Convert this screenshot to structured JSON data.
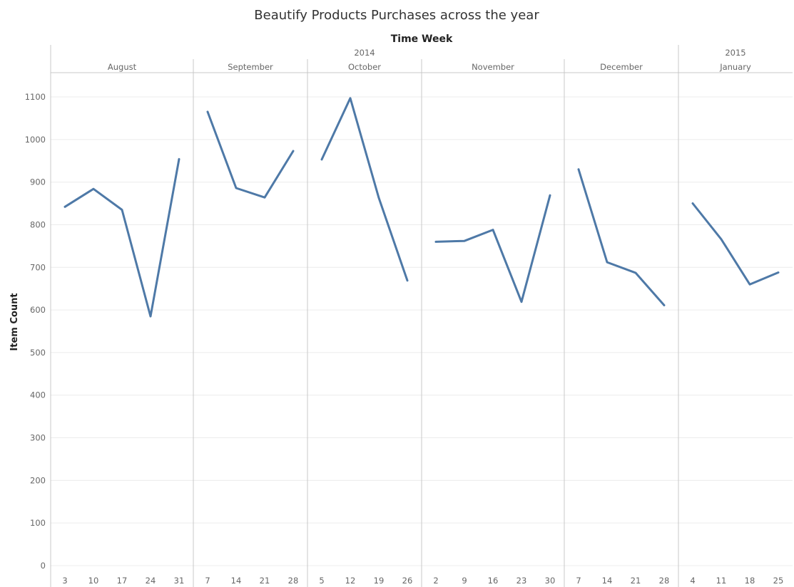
{
  "chart_data": {
    "type": "line",
    "title": "Beautify Products Purchases across the year",
    "subtitle": "Time Week",
    "ylabel": "Item Count",
    "ylim": [
      0,
      1150
    ],
    "yticks": [
      0,
      100,
      200,
      300,
      400,
      500,
      600,
      700,
      800,
      900,
      1000,
      1100
    ],
    "grid": true,
    "line_color": "#4e79a7",
    "years": [
      {
        "label": "2014",
        "months": [
          "August",
          "September",
          "October",
          "November",
          "December"
        ]
      },
      {
        "label": "2015",
        "months": [
          "January"
        ]
      }
    ],
    "months": [
      {
        "label": "August",
        "year": "2014",
        "weeks": [
          "3",
          "10",
          "17",
          "24",
          "31"
        ],
        "values": [
          842,
          884,
          835,
          585,
          954
        ]
      },
      {
        "label": "September",
        "year": "2014",
        "weeks": [
          "7",
          "14",
          "21",
          "28"
        ],
        "values": [
          1065,
          886,
          864,
          973
        ]
      },
      {
        "label": "October",
        "year": "2014",
        "weeks": [
          "5",
          "12",
          "19",
          "26"
        ],
        "values": [
          953,
          1097,
          863,
          669
        ]
      },
      {
        "label": "November",
        "year": "2014",
        "weeks": [
          "2",
          "9",
          "16",
          "23",
          "30"
        ],
        "values": [
          760,
          762,
          788,
          619,
          869
        ]
      },
      {
        "label": "December",
        "year": "2014",
        "weeks": [
          "7",
          "14",
          "21",
          "28"
        ],
        "values": [
          930,
          712,
          687,
          611
        ]
      },
      {
        "label": "January",
        "year": "2015",
        "weeks": [
          "4",
          "11",
          "18",
          "25"
        ],
        "values": [
          850,
          766,
          660,
          688
        ]
      }
    ]
  }
}
